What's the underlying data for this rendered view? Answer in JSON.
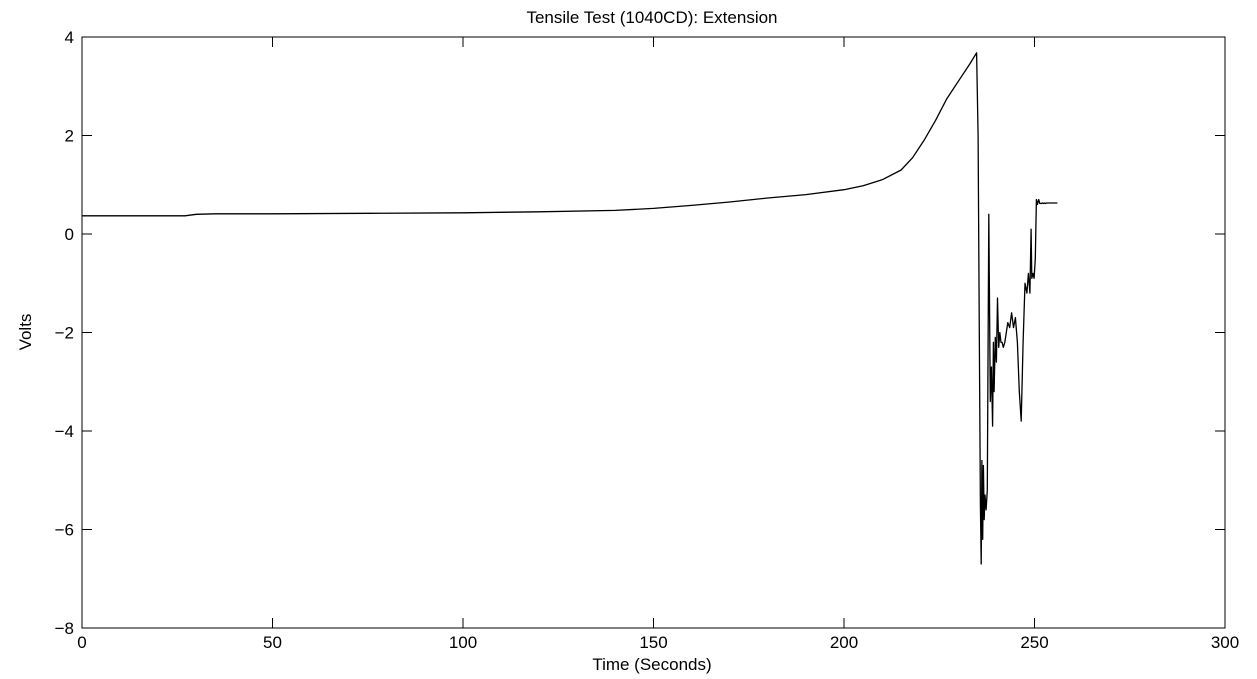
{
  "chart_data": {
    "type": "line",
    "title": "Tensile Test (1040CD):  Extension",
    "xlabel": "Time (Seconds)",
    "ylabel": "Volts",
    "xlim": [
      0,
      300
    ],
    "ylim": [
      -8,
      4
    ],
    "xticks": [
      0,
      50,
      100,
      150,
      200,
      250,
      300
    ],
    "yticks": [
      -8,
      -6,
      -4,
      -2,
      0,
      2,
      4
    ],
    "xtick_labels": [
      "0",
      "50",
      "100",
      "150",
      "200",
      "250",
      "300"
    ],
    "ytick_labels": [
      "−8",
      "−6",
      "−4",
      "−2",
      "0",
      "2",
      "4"
    ],
    "grid": false,
    "line_color": "#000000",
    "series": [
      {
        "x": [
          0,
          10,
          20,
          27,
          30,
          35,
          50,
          75,
          100,
          120,
          140,
          150,
          160,
          170,
          180,
          190,
          200,
          205,
          210,
          215,
          218,
          221,
          224,
          227,
          230,
          233,
          234.8,
          235.2,
          235.5,
          235.8,
          236.0,
          236.2,
          236.4,
          236.6,
          236.8,
          237.0,
          237.3,
          237.6,
          238.0,
          238.4,
          238.7,
          239.0,
          239.2,
          239.4,
          239.7,
          240.0,
          240.3,
          240.6,
          240.9,
          241.2,
          241.5,
          241.8,
          242.2,
          242.6,
          243.0,
          243.5,
          244.0,
          244.5,
          245.0,
          245.5,
          246.0,
          246.5,
          247.0,
          247.5,
          248.0,
          248.4,
          248.8,
          249.1,
          249.3,
          249.6,
          249.9,
          250.2,
          250.5,
          250.8,
          251.1,
          251.4,
          251.7,
          252.0,
          252.3,
          252.6,
          252.9,
          253.2,
          253.5,
          254.0,
          255.0,
          256.0
        ],
        "y": [
          0.37,
          0.37,
          0.37,
          0.37,
          0.4,
          0.41,
          0.41,
          0.42,
          0.43,
          0.45,
          0.48,
          0.52,
          0.58,
          0.65,
          0.73,
          0.8,
          0.9,
          0.98,
          1.1,
          1.3,
          1.55,
          1.9,
          2.3,
          2.75,
          3.1,
          3.45,
          3.68,
          2.0,
          -2.0,
          -5.5,
          -6.7,
          -4.6,
          -6.2,
          -4.7,
          -5.8,
          -5.3,
          -5.6,
          -5.2,
          0.4,
          -3.4,
          -2.7,
          -3.9,
          -2.2,
          -3.2,
          -2.1,
          -2.6,
          -1.3,
          -2.3,
          -2.0,
          -2.2,
          -2.2,
          -2.3,
          -2.2,
          -2.0,
          -1.8,
          -1.9,
          -1.6,
          -1.9,
          -1.7,
          -2.2,
          -3.2,
          -3.8,
          -2.2,
          -1.0,
          -1.2,
          -0.8,
          -1.2,
          0.1,
          -0.9,
          -0.8,
          -0.9,
          -0.5,
          0.7,
          0.6,
          0.7,
          0.62,
          0.62,
          0.63,
          0.62,
          0.63,
          0.62,
          0.63,
          0.63,
          0.63,
          0.63,
          0.63
        ]
      }
    ]
  }
}
